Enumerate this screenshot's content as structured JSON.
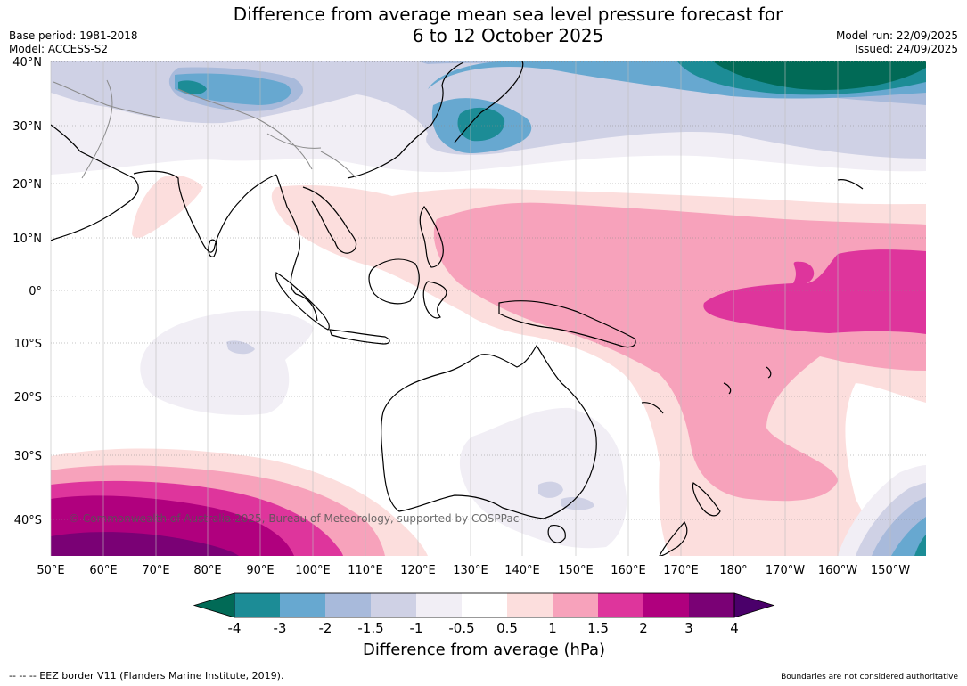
{
  "header": {
    "title_line1": "Difference from average mean sea level pressure forecast for",
    "title_line2": "6 to 12 October 2025",
    "base_period": "Base period: 1981-2018",
    "model": "Model: ACCESS-S2",
    "model_run": "Model run: 22/09/2025",
    "issued": "Issued: 24/09/2025"
  },
  "map": {
    "lat_labels": [
      "40°N",
      "30°N",
      "20°N",
      "10°N",
      "0°",
      "10°S",
      "20°S",
      "30°S",
      "40°S"
    ],
    "lon_labels": [
      "50°E",
      "60°E",
      "70°E",
      "80°E",
      "90°E",
      "100°E",
      "110°E",
      "120°E",
      "130°E",
      "140°E",
      "150°E",
      "160°E",
      "170°E",
      "180°",
      "170°W",
      "160°W",
      "150°W"
    ],
    "copyright": "© Commonwealth of Australia 2025, Bureau of Meteorology, supported by COSPPac"
  },
  "colorbar": {
    "labels": [
      "-4",
      "-3",
      "-2",
      "-1.5",
      "-1",
      "-0.5",
      "0.5",
      "1",
      "1.5",
      "2",
      "3",
      "4"
    ],
    "colors": {
      "lt_minus4": "#016a56",
      "m4_m3": "#1c8c96",
      "m3_m2": "#67a8d0",
      "m2_m15": "#a8badb",
      "m15_m1": "#cfd1e5",
      "m1_m05": "#f1eef5",
      "m05_05": "#ffffff",
      "p05_1": "#fcdedd",
      "p1_15": "#f7a2bb",
      "p15_2": "#de359c",
      "p2_3": "#b0007e",
      "p3_4": "#7a0175",
      "gt4": "#4a006a"
    },
    "title": "Difference from average (hPa)"
  },
  "footer": {
    "eez_note": "--  --  -- EEZ border V11 (Flanders Marine Institute, 2019).",
    "boundaries_note": "Boundaries are not considered authoritative"
  }
}
